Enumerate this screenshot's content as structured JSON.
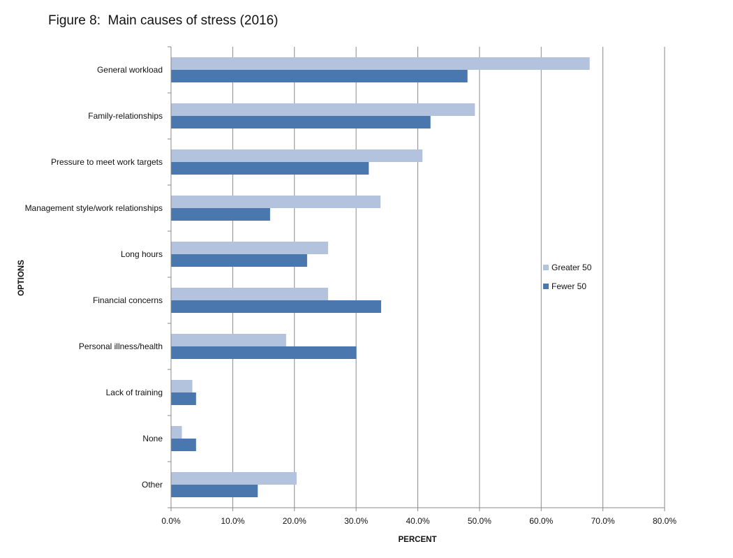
{
  "figure_title": "Figure 8:  Main causes of stress (2016)",
  "chart_data": {
    "type": "bar",
    "orientation": "horizontal",
    "title": "Figure 8:  Main causes of stress (2016)",
    "xlabel": "PERCENT",
    "ylabel": "OPTIONS",
    "xlim": [
      0,
      80
    ],
    "x_ticks": [
      "0.0%",
      "10.0%",
      "20.0%",
      "30.0%",
      "40.0%",
      "50.0%",
      "60.0%",
      "70.0%",
      "80.0%"
    ],
    "grid": "vertical",
    "legend_position": "right",
    "categories": [
      "General workload",
      "Family-relationships",
      "Pressure to meet work targets",
      "Management style/work relationships",
      "Long hours",
      "Financial concerns",
      "Personal illness/health",
      "Lack of training",
      "None",
      "Other"
    ],
    "series": [
      {
        "name": "Greater 50",
        "color": "#b4c3dd",
        "values": [
          67.8,
          49.2,
          40.7,
          33.9,
          25.4,
          25.4,
          18.6,
          3.4,
          1.7,
          20.3
        ]
      },
      {
        "name": "Fewer 50",
        "color": "#4a78ae",
        "values": [
          48.0,
          42.0,
          32.0,
          16.0,
          22.0,
          34.0,
          30.0,
          4.0,
          4.0,
          14.0
        ]
      }
    ]
  }
}
